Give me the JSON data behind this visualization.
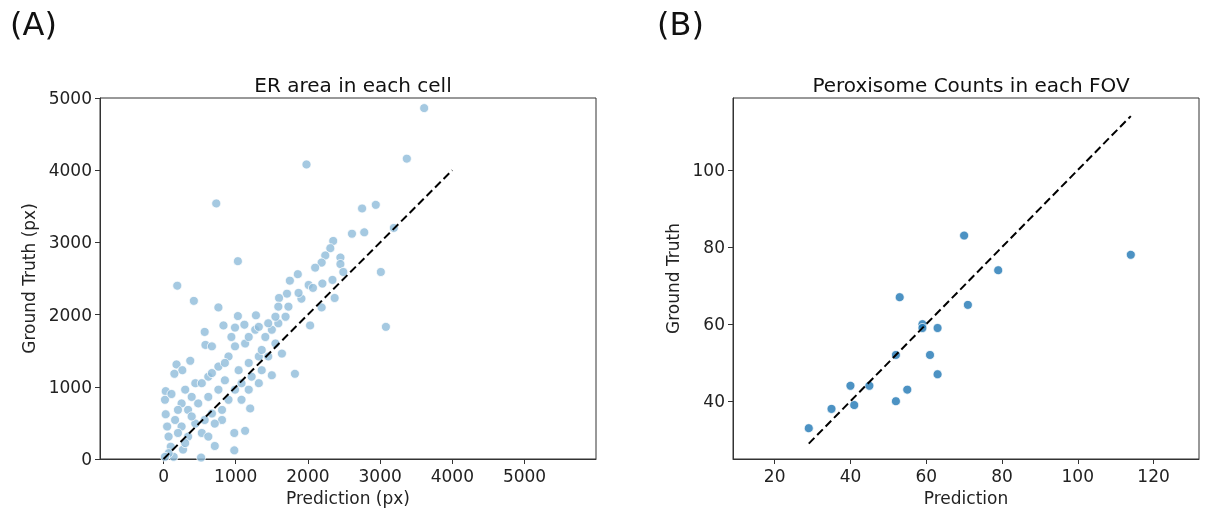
{
  "chart_data": [
    {
      "type": "scatter",
      "title": "ER area in each cell",
      "xlabel": "Prediction (px)",
      "ylabel": "Ground Truth (px)",
      "annotations": [
        "(A)"
      ],
      "xlim": [
        -880,
        5990
      ],
      "ylim": [
        0,
        5000
      ],
      "xticks": [
        0,
        1000,
        2000,
        3000,
        4000,
        5000
      ],
      "yticks": [
        0,
        1000,
        2000,
        3000,
        4000,
        5000
      ],
      "grid": false,
      "series": [
        {
          "marker": "circle",
          "color": "#8fbbd9",
          "x": [
            3610,
            3370,
            1980,
            730,
            2750,
            2940,
            3190,
            2610,
            2780,
            2350,
            2310,
            2240,
            2190,
            2100,
            2450,
            2450,
            2490,
            3010,
            3080,
            1030,
            190,
            420,
            760,
            1750,
            1860,
            2010,
            2070,
            2200,
            2340,
            2370,
            2190,
            2030,
            1820,
            1710,
            1600,
            1910,
            1280,
            1030,
            830,
            570,
            580,
            670,
            990,
            1120,
            940,
            370,
            180,
            260,
            150,
            30,
            20,
            110,
            30,
            50,
            70,
            100,
            140,
            270,
            520,
            980,
            980,
            1130,
            710,
            1200,
            1500,
            1450,
            1640,
            1550,
            1410,
            1270,
            1130,
            900,
            760,
            620,
            440,
            300,
            250,
            340,
            480,
            620,
            760,
            850,
            1040,
            1180,
            1320,
            1360,
            1500,
            1590,
            1690,
            1550,
            1450,
            1320,
            1180,
            990,
            850,
            670,
            530,
            390,
            200,
            160,
            250,
            340,
            440,
            570,
            670,
            810,
            900,
            990,
            1080,
            1220,
            1360,
            530,
            620,
            300,
            200,
            390,
            1180,
            1320,
            1080,
            810,
            710,
            1730,
            1870,
            1590,
            70,
            20
          ],
          "values": [
            4860,
            4160,
            4080,
            3540,
            3470,
            3520,
            3200,
            3120,
            3140,
            3020,
            2920,
            2820,
            2720,
            2650,
            2790,
            2700,
            2590,
            2590,
            1830,
            2740,
            2400,
            2190,
            2100,
            2470,
            2560,
            2410,
            2370,
            2430,
            2480,
            2230,
            2100,
            1850,
            1180,
            2290,
            2230,
            2220,
            1990,
            1980,
            1850,
            1760,
            1580,
            1560,
            1820,
            1860,
            1690,
            1360,
            1310,
            1230,
            1180,
            940,
            820,
            900,
            620,
            450,
            310,
            170,
            30,
            130,
            20,
            120,
            360,
            390,
            180,
            700,
            1160,
            1420,
            1460,
            1600,
            1690,
            1790,
            1600,
            1420,
            1280,
            1140,
            1050,
            960,
            770,
            680,
            770,
            860,
            960,
            1090,
            1230,
            1330,
            1420,
            1510,
            1790,
            1880,
            1970,
            1970,
            1880,
            1830,
            1690,
            1560,
            1330,
            1190,
            1050,
            860,
            680,
            540,
            450,
            310,
            490,
            540,
            630,
            680,
            820,
            960,
            1050,
            1140,
            1230,
            360,
            310,
            220,
            360,
            590,
            960,
            1050,
            820,
            540,
            490,
            2110,
            2300,
            2110,
            80,
            30
          ]
        },
        {
          "type": "line",
          "marker": "none",
          "color": "#000000",
          "line_style": "dashed",
          "x": [
            0,
            4000
          ],
          "values": [
            0,
            4000
          ]
        }
      ]
    },
    {
      "type": "scatter",
      "title": "Peroxisome Counts in each FOV",
      "xlabel": "Prediction",
      "ylabel": "Ground Truth",
      "annotations": [
        "(B)"
      ],
      "xlim": [
        9,
        132
      ],
      "ylim": [
        25,
        118.7
      ],
      "xticks": [
        20,
        40,
        60,
        80,
        100,
        120
      ],
      "yticks": [
        40,
        60,
        80,
        100
      ],
      "grid": false,
      "series": [
        {
          "marker": "circle",
          "color": "#1f77b4",
          "x": [
            29,
            35,
            40,
            41,
            45,
            52,
            52,
            53,
            55,
            59,
            59,
            61,
            63,
            63,
            70,
            71,
            79,
            114
          ],
          "values": [
            33,
            38,
            44,
            39,
            44,
            40,
            52,
            67,
            43,
            60,
            59,
            52,
            59,
            47,
            83,
            65,
            74,
            78
          ]
        },
        {
          "type": "line",
          "marker": "none",
          "color": "#000000",
          "line_style": "dashed",
          "x": [
            29,
            114
          ],
          "values": [
            29,
            114
          ]
        }
      ]
    }
  ]
}
